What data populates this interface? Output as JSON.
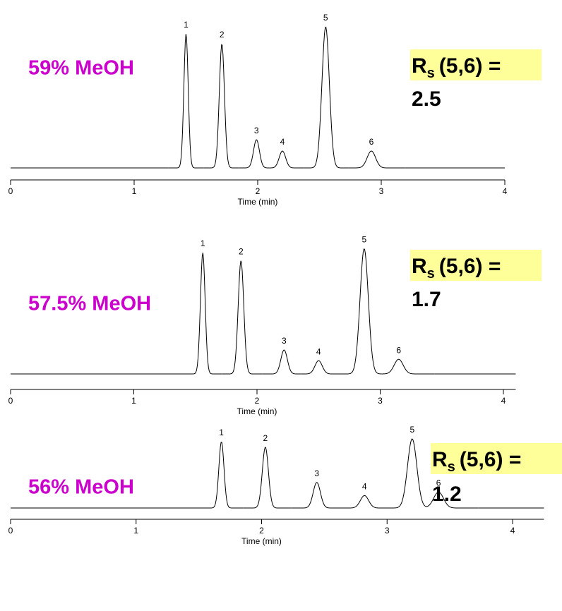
{
  "chart_data": [
    {
      "type": "chromatogram",
      "title": "59% MeOH",
      "annotation": {
        "symbol": "R",
        "subscript": "s",
        "text": "(5,6) =",
        "value": "2.5"
      },
      "xlabel": "Time (min)",
      "xlim": [
        0,
        4
      ],
      "xticks": [
        0,
        1,
        2,
        3,
        4
      ],
      "ylim": [
        0,
        100
      ],
      "labels": [
        "1",
        "2",
        "3",
        "4",
        "5",
        "6"
      ],
      "x": [
        1.42,
        1.71,
        1.99,
        2.2,
        2.55,
        2.92
      ],
      "values": [
        95,
        88,
        20,
        12,
        100,
        12
      ],
      "color": "#000000"
    },
    {
      "type": "chromatogram",
      "title": "57.5% MeOH",
      "annotation": {
        "symbol": "R",
        "subscript": "s",
        "text": "(5,6) =",
        "value": "1.7"
      },
      "xlabel": "Time (min)",
      "xlim": [
        0,
        4.1
      ],
      "xticks": [
        0,
        1,
        2,
        3,
        4
      ],
      "ylim": [
        0,
        100
      ],
      "labels": [
        "1",
        "2",
        "3",
        "4",
        "5",
        "6"
      ],
      "x": [
        1.56,
        1.87,
        2.22,
        2.5,
        2.87,
        3.15
      ],
      "values": [
        91,
        85,
        18,
        10,
        94,
        11
      ],
      "color": "#000000"
    },
    {
      "type": "chromatogram",
      "title": "56% MeOH",
      "annotation": {
        "symbol": "R",
        "subscript": "s",
        "text": "(5,6) =",
        "value": "1.2"
      },
      "xlabel": "Time (min)",
      "xlim": [
        0,
        4.25
      ],
      "xticks": [
        0,
        1,
        2,
        3,
        4
      ],
      "ylim": [
        0,
        100
      ],
      "labels": [
        "1",
        "2",
        "3",
        "4",
        "5",
        "6"
      ],
      "x": [
        1.68,
        2.03,
        2.44,
        2.82,
        3.2,
        3.41
      ],
      "values": [
        96,
        88,
        37,
        18,
        100,
        23
      ],
      "color": "#000000"
    }
  ]
}
